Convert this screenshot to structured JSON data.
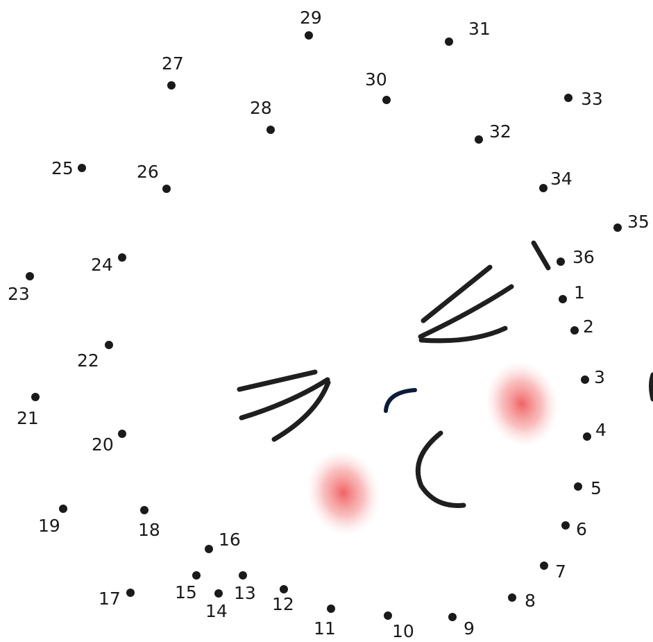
{
  "colors": {
    "ink": "#1a1a1a",
    "blush": "#f05a5a",
    "mouth": "#0d1b3a"
  },
  "points": [
    {
      "n": "1"
    },
    {
      "n": "2"
    },
    {
      "n": "3"
    },
    {
      "n": "4"
    },
    {
      "n": "5"
    },
    {
      "n": "6"
    },
    {
      "n": "7"
    },
    {
      "n": "8"
    },
    {
      "n": "9"
    },
    {
      "n": "10"
    },
    {
      "n": "11"
    },
    {
      "n": "12"
    },
    {
      "n": "13"
    },
    {
      "n": "14"
    },
    {
      "n": "15"
    },
    {
      "n": "16"
    },
    {
      "n": "17"
    },
    {
      "n": "18"
    },
    {
      "n": "19"
    },
    {
      "n": "20"
    },
    {
      "n": "21"
    },
    {
      "n": "22"
    },
    {
      "n": "23"
    },
    {
      "n": "24"
    },
    {
      "n": "25"
    },
    {
      "n": "26"
    },
    {
      "n": "27"
    },
    {
      "n": "28"
    },
    {
      "n": "29"
    },
    {
      "n": "30"
    },
    {
      "n": "31"
    },
    {
      "n": "32"
    },
    {
      "n": "33"
    },
    {
      "n": "34"
    },
    {
      "n": "35"
    },
    {
      "n": "36"
    }
  ]
}
